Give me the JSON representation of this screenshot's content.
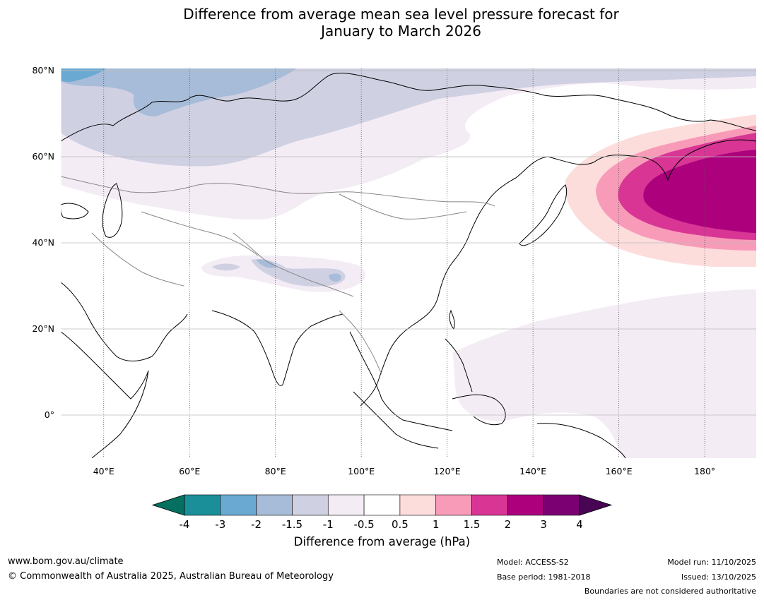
{
  "title": {
    "line1": "Difference from average mean sea level pressure forecast for",
    "line2": "January to March 2026"
  },
  "map": {
    "lon_range": [
      30,
      192
    ],
    "lat_range": [
      -10,
      80.5
    ],
    "lat_labels": [
      "80°N",
      "60°N",
      "40°N",
      "20°N",
      "0°"
    ],
    "lat_values": [
      80,
      60,
      40,
      20,
      0
    ],
    "lon_labels": [
      "40°E",
      "60°E",
      "80°E",
      "100°E",
      "120°E",
      "140°E",
      "160°E",
      "180°"
    ],
    "lon_values": [
      40,
      60,
      80,
      100,
      120,
      140,
      160,
      180
    ]
  },
  "colorbar": {
    "ticks": [
      "-4",
      "-3",
      "-2",
      "-1.5",
      "-1",
      "-0.5",
      "0.5",
      "1",
      "1.5",
      "2",
      "3",
      "4"
    ],
    "colors": [
      "#1a8f99",
      "#6aa9d1",
      "#a6bcd8",
      "#d0d0e3",
      "#f4ecf5",
      "#ffffff",
      "#fddcdc",
      "#f89bb8",
      "#d83595",
      "#ac007d",
      "#7b0072"
    ],
    "below_color": "#05705f",
    "above_color": "#470554",
    "label": "Difference from average (hPa)"
  },
  "footer": {
    "website": "www.bom.gov.au/climate",
    "copyright": "© Commonwealth of Australia 2025, Australian Bureau of Meteorology",
    "model": "Model: ACCESS-S2",
    "base_period": "Base period: 1981-2018",
    "model_run": "Model run: 11/10/2025",
    "issued": "Issued: 13/10/2025",
    "disclaimer": "Boundaries are not considered authoritative"
  }
}
